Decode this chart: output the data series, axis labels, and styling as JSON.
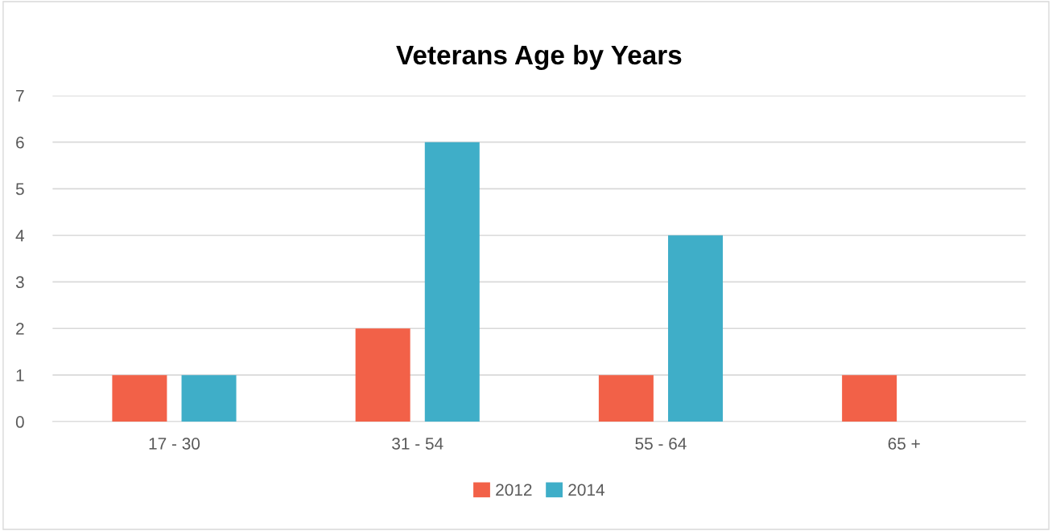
{
  "chart_data": {
    "type": "bar",
    "title": "Veterans Age by Years",
    "categories": [
      "17 - 30",
      "31 - 54",
      "55 - 64",
      "65 +"
    ],
    "series": [
      {
        "name": "2012",
        "color": "#f26148",
        "values": [
          1,
          2,
          1,
          1
        ]
      },
      {
        "name": "2014",
        "color": "#3faec8",
        "values": [
          1,
          6,
          4,
          0
        ]
      }
    ],
    "ylim": [
      0,
      7
    ],
    "yticks": [
      0,
      1,
      2,
      3,
      4,
      5,
      6,
      7
    ],
    "grid": "y",
    "legend": "bottom"
  }
}
